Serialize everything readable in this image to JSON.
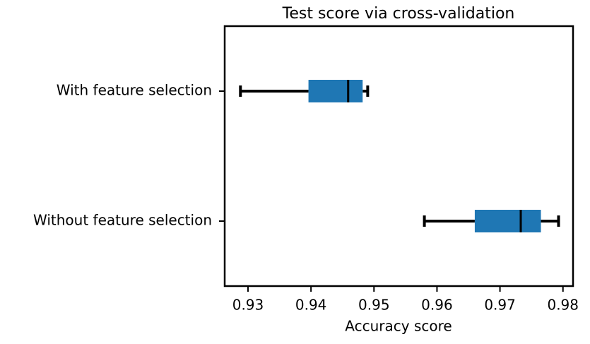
{
  "chart_data": {
    "type": "boxplot",
    "title": "Test score via cross-validation",
    "x_label": "Accuracy score",
    "categories": [
      "With feature selection",
      "Without feature selection"
    ],
    "boxes": [
      {
        "whislo": 0.9288,
        "q1": 0.9396,
        "med": 0.9459,
        "q3": 0.9482,
        "whishi": 0.949
      },
      {
        "whislo": 0.958,
        "q1": 0.966,
        "med": 0.9733,
        "q3": 0.9765,
        "whishi": 0.9793
      }
    ],
    "color": "#1f77b4",
    "xlim": [
      0.9263,
      0.9816
    ],
    "xticks": [
      0.93,
      0.94,
      0.95,
      0.96,
      0.97,
      0.98
    ]
  }
}
